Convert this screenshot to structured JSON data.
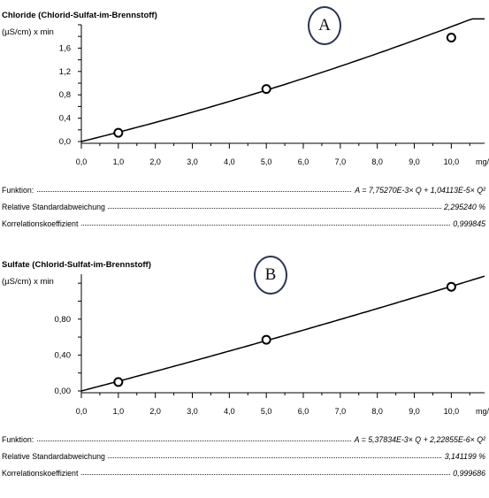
{
  "x_unit": "mg/L",
  "stat_labels": {
    "function": "Funktion:",
    "rsd": "Relative Standardabweichung",
    "correlation": "Korrelationskoeffizient"
  },
  "chart_data": [
    {
      "type": "scatter",
      "label": "A",
      "title": "Chloride (Chlorid-Sulfat-im-Brennstoff)",
      "ylabel": "(µS/cm) x min",
      "xlabel": "mg/L",
      "xlim": [
        0,
        10.9
      ],
      "ylim": [
        0,
        2.0
      ],
      "x_ticks": [
        "0,0",
        "1,0",
        "2,0",
        "3,0",
        "4,0",
        "5,0",
        "6,0",
        "7,0",
        "8,0",
        "9,0",
        "10,0"
      ],
      "y_ticks": [
        {
          "value": 0,
          "label": "0,0"
        },
        {
          "value": 0.4,
          "label": "0,4"
        },
        {
          "value": 0.8,
          "label": "0,8"
        },
        {
          "value": 1.2,
          "label": "1,2"
        },
        {
          "value": 1.6,
          "label": "1,6"
        }
      ],
      "points": [
        {
          "x": 1.0,
          "y": 0.15
        },
        {
          "x": 5.0,
          "y": 0.9
        },
        {
          "x": 10.0,
          "y": 1.78
        }
      ],
      "fit": {
        "a": 0.0077527,
        "b": 1.04113e-05
      },
      "function": "A = 7,75270E-3× Q + 1,04113E-5× Q²",
      "rsd": "2,295240 %",
      "correlation": "0,999845",
      "grid": false
    },
    {
      "type": "scatter",
      "label": "B",
      "title": "Sulfate (Chlorid-Sulfat-im-Brennstoff)",
      "ylabel": "(µS/cm) x min",
      "xlabel": "mg/L",
      "xlim": [
        0,
        10.9
      ],
      "ylim": [
        0,
        1.3
      ],
      "x_ticks": [
        "0,0",
        "1,0",
        "2,0",
        "3,0",
        "4,0",
        "5,0",
        "6,0",
        "7,0",
        "8,0",
        "9,0",
        "10,0"
      ],
      "y_ticks": [
        {
          "value": 0,
          "label": "0,00"
        },
        {
          "value": 0.4,
          "label": "0,40"
        },
        {
          "value": 0.8,
          "label": "0,80"
        }
      ],
      "points": [
        {
          "x": 1.0,
          "y": 0.1
        },
        {
          "x": 5.0,
          "y": 0.57
        },
        {
          "x": 10.0,
          "y": 1.16
        }
      ],
      "fit": {
        "a": 0.00537834,
        "b": 2.22855e-06
      },
      "function": "A = 5,37834E-3× Q + 2,22855E-6× Q²",
      "rsd": "3,141199 %",
      "correlation": "0,999686",
      "grid": false
    }
  ]
}
